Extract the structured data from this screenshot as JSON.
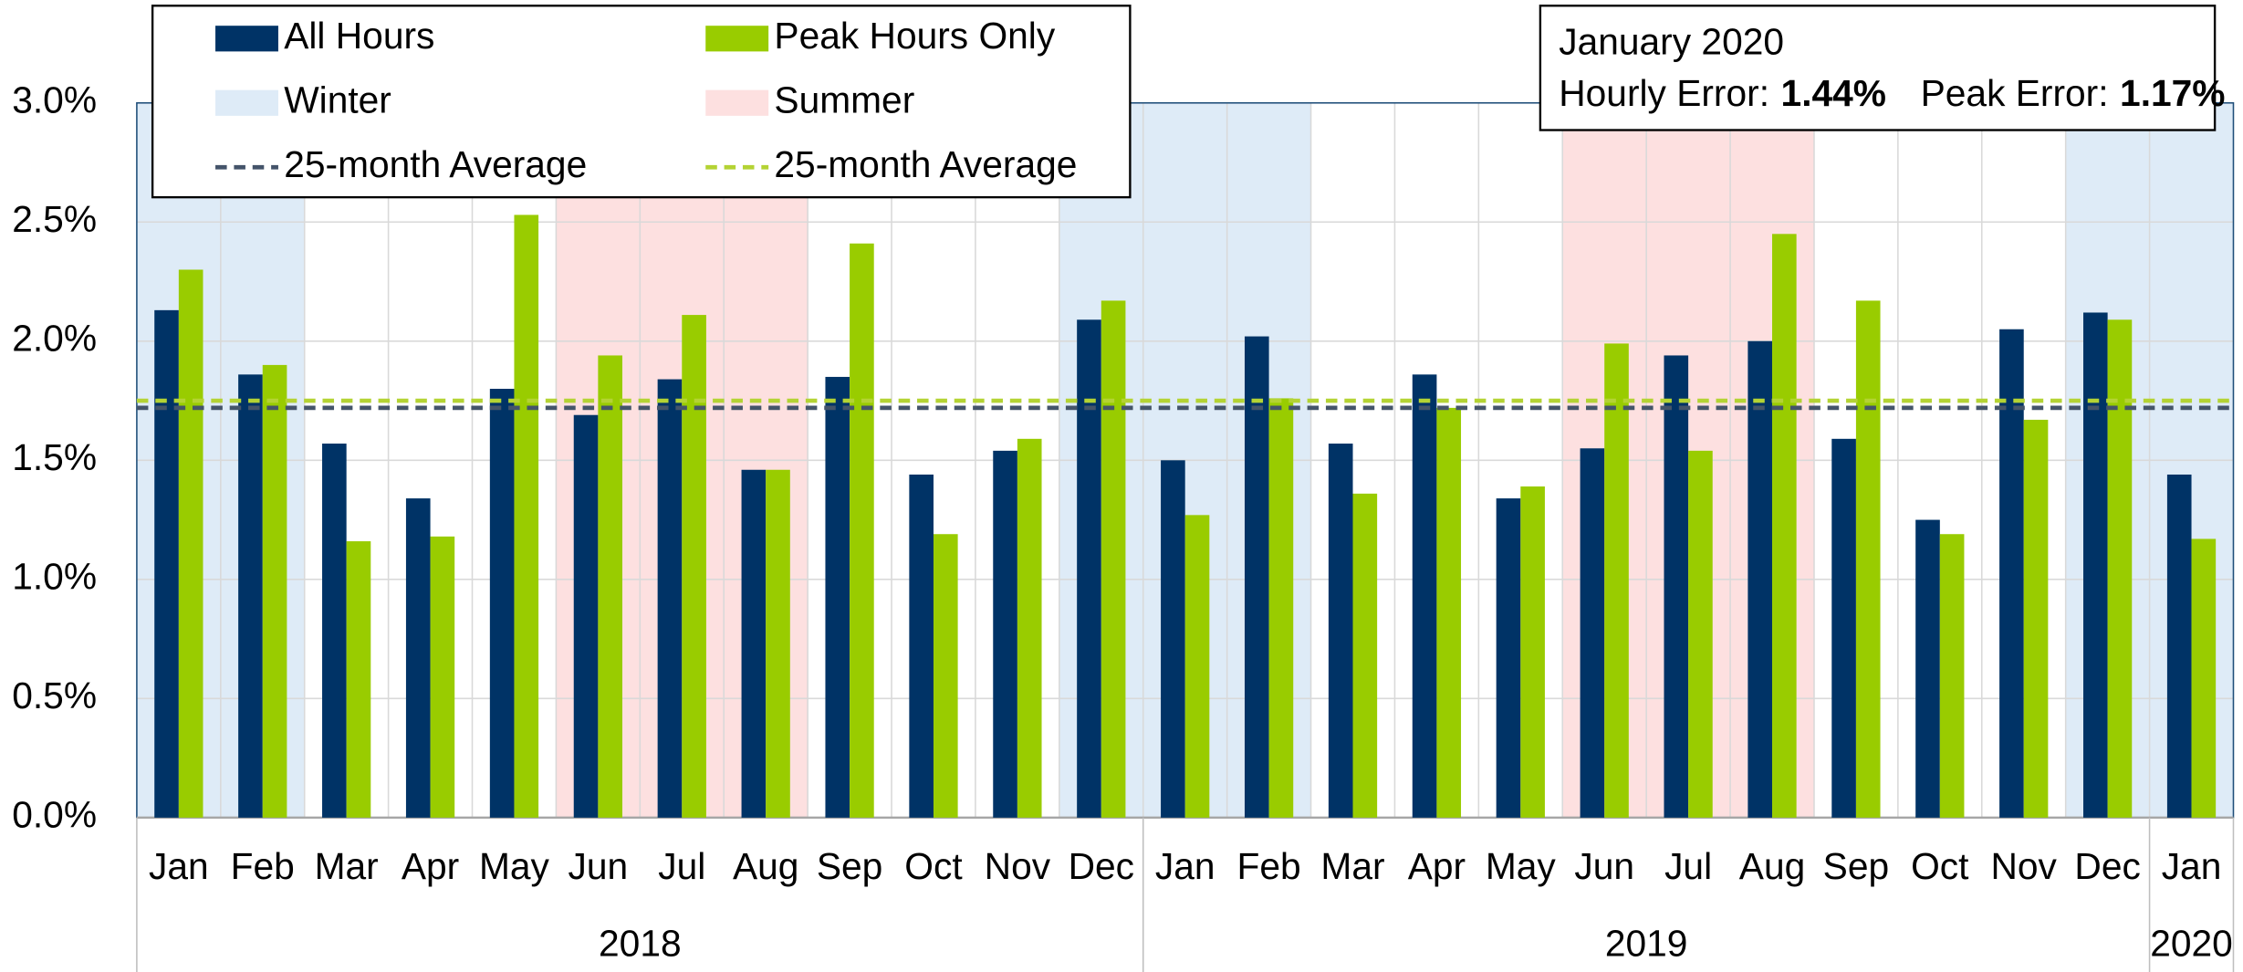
{
  "chart_data": {
    "type": "bar",
    "categories": [
      "Jan",
      "Feb",
      "Mar",
      "Apr",
      "May",
      "Jun",
      "Jul",
      "Aug",
      "Sep",
      "Oct",
      "Nov",
      "Dec",
      "Jan",
      "Feb",
      "Mar",
      "Apr",
      "May",
      "Jun",
      "Jul",
      "Aug",
      "Sep",
      "Oct",
      "Nov",
      "Dec",
      "Jan"
    ],
    "groups": [
      {
        "label": "2018",
        "span": 12
      },
      {
        "label": "2019",
        "span": 12
      },
      {
        "label": "2020",
        "span": 1
      }
    ],
    "series": [
      {
        "name": "All Hours",
        "color": "#003366",
        "values": [
          2.13,
          1.86,
          1.57,
          1.34,
          1.8,
          1.69,
          1.84,
          1.46,
          1.85,
          1.44,
          1.54,
          2.09,
          1.5,
          2.02,
          1.57,
          1.86,
          1.34,
          1.55,
          1.94,
          2.0,
          1.59,
          1.25,
          2.05,
          2.12,
          1.44
        ],
        "average": {
          "name": "25-month Average",
          "value": 1.72
        }
      },
      {
        "name": "Peak Hours Only",
        "color": "#99cc00",
        "values": [
          2.3,
          1.9,
          1.16,
          1.18,
          2.53,
          1.94,
          2.11,
          1.46,
          2.41,
          1.19,
          1.59,
          2.17,
          1.27,
          1.76,
          1.36,
          1.72,
          1.39,
          1.99,
          1.54,
          2.45,
          2.17,
          1.19,
          1.67,
          2.09,
          1.17
        ],
        "average": {
          "name": "25-month Average",
          "value": 1.75
        }
      }
    ],
    "bands": [
      {
        "name": "Winter",
        "color": "#deebf7",
        "spans": [
          [
            0,
            1
          ],
          [
            11,
            13
          ],
          [
            23,
            24
          ]
        ]
      },
      {
        "name": "Summer",
        "color": "#fde0e0",
        "spans": [
          [
            5,
            7
          ],
          [
            17,
            19
          ]
        ]
      }
    ],
    "annotation": {
      "title": "January 2020",
      "hourly_label": "Hourly Error:",
      "hourly_value": "1.44%",
      "peak_label": "Peak Error:",
      "peak_value": "1.17%"
    },
    "ylim": [
      0,
      3
    ],
    "yticks": [
      {
        "value": 0,
        "label": "0.0%"
      },
      {
        "value": 0.5,
        "label": "0.5%"
      },
      {
        "value": 1,
        "label": "1.0%"
      },
      {
        "value": 1.5,
        "label": "1.5%"
      },
      {
        "value": 2,
        "label": "2.0%"
      },
      {
        "value": 2.5,
        "label": "2.5%"
      },
      {
        "value": 3,
        "label": "3.0%"
      }
    ],
    "grid": true
  }
}
